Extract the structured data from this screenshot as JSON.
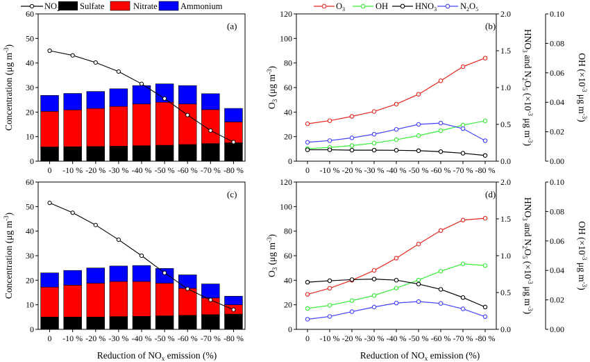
{
  "chart_data": [
    {
      "id": "a",
      "type": "bar",
      "panel_label": "(a)",
      "categories": [
        "0",
        "-10 %",
        "-20 %",
        "-30 %",
        "-40 %",
        "-50 %",
        "-60 %",
        "-70 %",
        "-80 %"
      ],
      "stacked": true,
      "series": [
        {
          "name": "Sulfate",
          "color": "#000000",
          "values": [
            5.8,
            5.9,
            6.0,
            6.1,
            6.3,
            6.5,
            6.8,
            7.2,
            7.5
          ]
        },
        {
          "name": "Nitrate",
          "color": "#ff0000",
          "values": [
            14.5,
            15.0,
            15.5,
            16.2,
            17.0,
            17.5,
            16.5,
            13.8,
            8.5
          ]
        },
        {
          "name": "Ammonium",
          "color": "#0000ff",
          "values": [
            6.5,
            6.7,
            6.9,
            7.2,
            7.5,
            7.5,
            7.5,
            6.5,
            5.5
          ]
        }
      ],
      "line": {
        "name": "NO2",
        "values": [
          45.0,
          43.1,
          40.2,
          36.5,
          31.5,
          25.5,
          18.8,
          12.5,
          7.8
        ]
      },
      "ylabel": "Concentration (μg m-3)",
      "ylim": [
        0,
        60
      ],
      "yticks": [
        "0",
        "10",
        "20",
        "30",
        "40",
        "50",
        "60"
      ]
    },
    {
      "id": "b",
      "type": "line",
      "panel_label": "(b)",
      "categories": [
        "0",
        "-10 %",
        "-20 %",
        "-30 %",
        "-40 %",
        "-50 %",
        "-60 %",
        "-70 %",
        "-80 %"
      ],
      "series": [
        {
          "name": "O3",
          "axis": "left",
          "color": "#e8251c",
          "values": [
            30.5,
            33.0,
            36.5,
            40.5,
            46.5,
            54.5,
            65.5,
            77.0,
            84.0
          ]
        },
        {
          "name": "OH",
          "axis": "right2",
          "color": "#33ee33",
          "values": [
            0.0085,
            0.0093,
            0.0106,
            0.0123,
            0.0146,
            0.0174,
            0.0207,
            0.0245,
            0.0274
          ]
        },
        {
          "name": "HNO3",
          "axis": "right1",
          "color": "#000000",
          "values": [
            0.155,
            0.155,
            0.15,
            0.15,
            0.148,
            0.143,
            0.13,
            0.108,
            0.078
          ]
        },
        {
          "name": "N2O5",
          "axis": "right1",
          "color": "#4040ff",
          "values": [
            0.257,
            0.28,
            0.317,
            0.367,
            0.432,
            0.5,
            0.518,
            0.442,
            0.278
          ]
        }
      ],
      "ylabel": "O3 (μg m-3)",
      "ylim": [
        0,
        120
      ],
      "yticks": [
        "0",
        "20",
        "40",
        "60",
        "80",
        "100",
        "120"
      ],
      "y2label": "HNO3 and N2O5 (×10-3 μg m-3)",
      "y2lim": [
        0,
        2.0
      ],
      "y2ticks": [
        "0.0",
        "0.5",
        "1.0",
        "1.5",
        "2.0"
      ],
      "y3label": "OH (×10-3 μg m-3)",
      "y3lim": [
        0,
        0.1
      ],
      "y3ticks": [
        "0.00",
        "0.02",
        "0.04",
        "0.06",
        "0.08",
        "0.10"
      ]
    },
    {
      "id": "c",
      "type": "bar",
      "panel_label": "(c)",
      "categories": [
        "0",
        "-10 %",
        "-20 %",
        "-30 %",
        "-40 %",
        "-50 %",
        "-60 %",
        "-70 %",
        "-80 %"
      ],
      "stacked": true,
      "series": [
        {
          "name": "Sulfate",
          "color": "#000000",
          "values": [
            5.0,
            5.0,
            5.0,
            5.2,
            5.3,
            5.5,
            5.7,
            6.0,
            6.2
          ]
        },
        {
          "name": "Nitrate",
          "color": "#ff0000",
          "values": [
            12.2,
            13.0,
            13.8,
            14.3,
            14.2,
            13.3,
            11.0,
            6.8,
            3.8
          ]
        },
        {
          "name": "Ammonium",
          "color": "#0000ff",
          "values": [
            5.8,
            6.0,
            6.2,
            6.3,
            6.5,
            6.0,
            5.5,
            5.7,
            3.5
          ]
        }
      ],
      "line": {
        "name": "NO2",
        "values": [
          51.5,
          47.5,
          42.5,
          36.5,
          30.0,
          23.0,
          16.5,
          12.0,
          8.0
        ]
      },
      "ylabel": "Concentration (μg m-3)",
      "ylim": [
        0,
        60
      ],
      "yticks": [
        "0",
        "10",
        "20",
        "30",
        "40",
        "50",
        "60"
      ]
    },
    {
      "id": "d",
      "type": "line",
      "panel_label": "(d)",
      "categories": [
        "0",
        "-10 %",
        "-20 %",
        "-30 %",
        "-40 %",
        "-50 %",
        "-60 %",
        "-70 %",
        "-80 %"
      ],
      "series": [
        {
          "name": "O3",
          "axis": "left",
          "color": "#e8251c",
          "values": [
            28.5,
            33.5,
            40.0,
            48.0,
            58.0,
            69.5,
            80.5,
            89.0,
            90.5
          ]
        },
        {
          "name": "OH",
          "axis": "right2",
          "color": "#33ee33",
          "values": [
            0.0142,
            0.0163,
            0.0195,
            0.023,
            0.028,
            0.0335,
            0.0395,
            0.0445,
            0.0433
          ]
        },
        {
          "name": "HNO3",
          "axis": "right1",
          "color": "#000000",
          "values": [
            0.64,
            0.66,
            0.675,
            0.683,
            0.668,
            0.615,
            0.543,
            0.432,
            0.303
          ]
        },
        {
          "name": "N2O5",
          "axis": "right1",
          "color": "#4040ff",
          "values": [
            0.137,
            0.175,
            0.24,
            0.303,
            0.357,
            0.377,
            0.352,
            0.278,
            0.172
          ]
        }
      ],
      "ylabel": "O3 (μg m-3)",
      "ylim": [
        0,
        120
      ],
      "yticks": [
        "0",
        "20",
        "40",
        "60",
        "80",
        "100",
        "120"
      ],
      "y2label": "HNO3 and N2O5 (×10-3 μg m-3)",
      "y2lim": [
        0,
        2.0
      ],
      "y2ticks": [
        "0.0",
        "0.5",
        "1.0",
        "1.5",
        "2.0"
      ],
      "y3label": "OH (×10-3 μg m-3)",
      "y3lim": [
        0,
        0.1
      ],
      "y3ticks": [
        "0.00",
        "0.02",
        "0.04",
        "0.06",
        "0.08",
        "0.10"
      ]
    }
  ],
  "legends": {
    "left": [
      "NO2",
      "Sulfate",
      "Nitrate",
      "Ammonium"
    ],
    "right": [
      "O3",
      "OH",
      "HNO3",
      "N2O5"
    ]
  },
  "xlabel": "Reduction of NOx emission (%)"
}
